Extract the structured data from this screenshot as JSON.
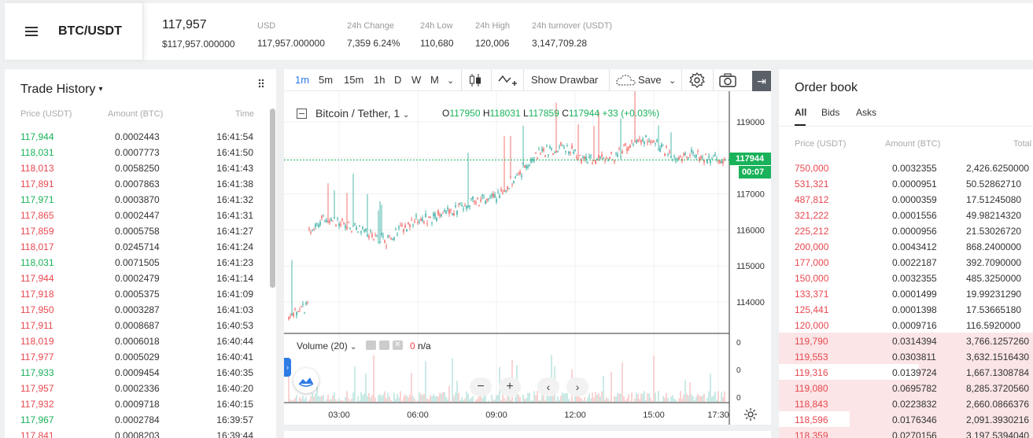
{
  "header": {
    "pair": "BTC/USDT",
    "last_price": "117,957",
    "last_price_sub": "$117,957.000000",
    "stats": [
      {
        "label": "USD",
        "value": "117,957.000000",
        "color": "#333333"
      },
      {
        "label": "24h Change",
        "value": "7,359 6.24%",
        "color": "#19b25a"
      },
      {
        "label": "24h Low",
        "value": "110,680",
        "color": "#333333"
      },
      {
        "label": "24h High",
        "value": "120,006",
        "color": "#333333"
      },
      {
        "label": "24h turnover (USDT)",
        "value": "3,147,709.28",
        "color": "#333333"
      }
    ]
  },
  "trade_history": {
    "title": "Trade History",
    "columns": [
      "Price (USDT)",
      "Amount (BTC)",
      "Time"
    ],
    "rows": [
      {
        "price": "117,944",
        "amount": "0.0002443",
        "time": "16:41:54",
        "side": "buy"
      },
      {
        "price": "118,031",
        "amount": "0.0007773",
        "time": "16:41:50",
        "side": "buy"
      },
      {
        "price": "118,013",
        "amount": "0.0058250",
        "time": "16:41:43",
        "side": "sell"
      },
      {
        "price": "117,891",
        "amount": "0.0007863",
        "time": "16:41:38",
        "side": "sell"
      },
      {
        "price": "117,971",
        "amount": "0.0003870",
        "time": "16:41:32",
        "side": "buy"
      },
      {
        "price": "117,865",
        "amount": "0.0002447",
        "time": "16:41:31",
        "side": "sell"
      },
      {
        "price": "117,859",
        "amount": "0.0005758",
        "time": "16:41:27",
        "side": "sell"
      },
      {
        "price": "118,017",
        "amount": "0.0245714",
        "time": "16:41:24",
        "side": "sell"
      },
      {
        "price": "118,031",
        "amount": "0.0071505",
        "time": "16:41:23",
        "side": "buy"
      },
      {
        "price": "117,944",
        "amount": "0.0002479",
        "time": "16:41:14",
        "side": "sell"
      },
      {
        "price": "117,918",
        "amount": "0.0005375",
        "time": "16:41:09",
        "side": "sell"
      },
      {
        "price": "117,950",
        "amount": "0.0003287",
        "time": "16:41:03",
        "side": "sell"
      },
      {
        "price": "117,911",
        "amount": "0.0008687",
        "time": "16:40:53",
        "side": "sell"
      },
      {
        "price": "118,019",
        "amount": "0.0006018",
        "time": "16:40:44",
        "side": "sell"
      },
      {
        "price": "117,977",
        "amount": "0.0005029",
        "time": "16:40:41",
        "side": "sell"
      },
      {
        "price": "117,933",
        "amount": "0.0009454",
        "time": "16:40:35",
        "side": "buy"
      },
      {
        "price": "117,957",
        "amount": "0.0002336",
        "time": "16:40:20",
        "side": "sell"
      },
      {
        "price": "117,932",
        "amount": "0.0009718",
        "time": "16:40:15",
        "side": "sell"
      },
      {
        "price": "117,967",
        "amount": "0.0002784",
        "time": "16:39:57",
        "side": "buy"
      },
      {
        "price": "117,841",
        "amount": "0.0008203",
        "time": "16:39:44",
        "side": "sell"
      }
    ]
  },
  "chart": {
    "intervals": [
      "1m",
      "5m",
      "15m",
      "1h",
      "D",
      "W",
      "M"
    ],
    "active_interval": "1m",
    "show_drawbar": "Show Drawbar",
    "save": "Save",
    "symbol": "Bitcoin / Tether, 1",
    "ohlc": {
      "o_label": "O",
      "o": "117950",
      "h_label": "H",
      "h": "118031",
      "l_label": "L",
      "l": "117859",
      "c_label": "C",
      "c": "117944",
      "change": "+33 (+0.03%)"
    },
    "price_axis": [
      "119000",
      "118000",
      "117000",
      "116000",
      "115000",
      "114000"
    ],
    "current_price": "117944",
    "countdown": "00:07",
    "time_axis": [
      "03:00",
      "06:00",
      "09:00",
      "12:00",
      "15:00",
      "17:30"
    ],
    "volume_label": "Volume (20)",
    "volume_value": "0",
    "volume_na": "n/a",
    "volume_axis": [
      "0",
      "0",
      "0"
    ],
    "colors": {
      "up": "#26a69a",
      "down": "#ef5350",
      "current": "#19b25a"
    }
  },
  "order_book": {
    "title": "Order book",
    "tabs": [
      "All",
      "Bids",
      "Asks"
    ],
    "active_tab": "All",
    "columns": [
      "Price (USDT)",
      "Amount (BTC)",
      "Total"
    ],
    "asks": [
      {
        "price": "750,000",
        "amount": "0.0032355",
        "total": "2,426.6250000",
        "depth": 0
      },
      {
        "price": "531,321",
        "amount": "0.0000951",
        "total": "50.52862710",
        "depth": 0
      },
      {
        "price": "487,812",
        "amount": "0.0000359",
        "total": "17.51245080",
        "depth": 0
      },
      {
        "price": "321,222",
        "amount": "0.0001556",
        "total": "49.98214320",
        "depth": 0
      },
      {
        "price": "225,212",
        "amount": "0.0000956",
        "total": "21.53026720",
        "depth": 0
      },
      {
        "price": "200,000",
        "amount": "0.0043412",
        "total": "868.2400000",
        "depth": 0
      },
      {
        "price": "177,000",
        "amount": "0.0022187",
        "total": "392.7090000",
        "depth": 0
      },
      {
        "price": "150,000",
        "amount": "0.0032355",
        "total": "485.3250000",
        "depth": 0
      },
      {
        "price": "133,371",
        "amount": "0.0001499",
        "total": "19.99231290",
        "depth": 0
      },
      {
        "price": "125,441",
        "amount": "0.0001398",
        "total": "17.53665180",
        "depth": 0
      },
      {
        "price": "120,000",
        "amount": "0.0009716",
        "total": "116.5920000",
        "depth": 0
      },
      {
        "price": "119,790",
        "amount": "0.0314394",
        "total": "3,766.1257260",
        "depth": 1.0
      },
      {
        "price": "119,553",
        "amount": "0.0303811",
        "total": "3,632.1516430",
        "depth": 1.0
      },
      {
        "price": "119,316",
        "amount": "0.0139724",
        "total": "1,667.1308784",
        "depth": 0.45
      },
      {
        "price": "119,080",
        "amount": "0.0695782",
        "total": "8,285.3720560",
        "depth": 1.0
      },
      {
        "price": "118,843",
        "amount": "0.0223832",
        "total": "2,660.0866376",
        "depth": 1.0
      },
      {
        "price": "118,596",
        "amount": "0.0176346",
        "total": "2,091.3930216",
        "depth": 0.72
      },
      {
        "price": "118,359",
        "amount": "0.0270156",
        "total": "3,197.5394040",
        "depth": 1.0
      }
    ]
  }
}
